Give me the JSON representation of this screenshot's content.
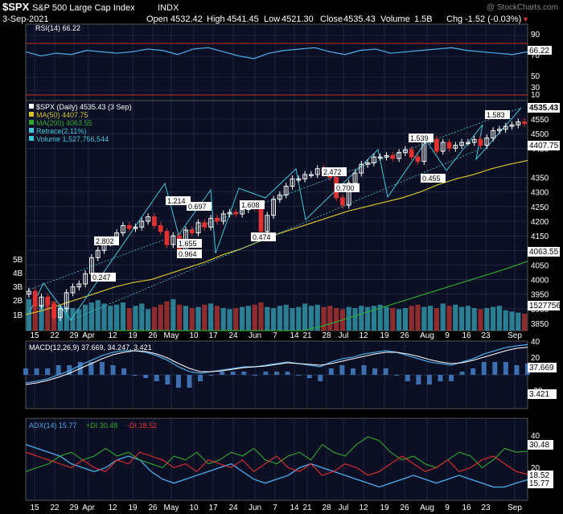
{
  "header": {
    "symbol": "$SPX",
    "name": "S&P 500 Large Cap Index",
    "exchange": "INDX",
    "watermark": "@ StockCharts.com",
    "date": "3-Sep-2021",
    "quote_labels": {
      "open": "Open",
      "high": "High",
      "low": "Low",
      "close": "Close",
      "volume": "Volume",
      "change": "Chg"
    },
    "quote_values": {
      "open": "4532.42",
      "high": "4541.45",
      "low": "4521.30",
      "close": "4535.43",
      "volume": "1.5B",
      "change": "-1.52 (-0.03%)"
    },
    "down_arrow": "▼"
  },
  "colors": {
    "background": "#000000",
    "panel": "#0a0f24",
    "grid": "#2a3550",
    "axis_text": "#ffffff",
    "rsi_line": "#4aa3df",
    "rsi_bands": "#c03030",
    "up_candle": "#ffffff",
    "down_candle": "#e03030",
    "ma50": "#d7c42a",
    "ma200": "#2fa82f",
    "retrace": "#3fc6d8",
    "volume_up": "#2f8b9e",
    "volume_down": "#9e2f2f",
    "macd_line": "#4aa3df",
    "signal_line": "#ffffff",
    "histogram": "#3b6fb0",
    "adx_line": "#4aa3df",
    "plus_di": "#2fa82f",
    "minus_di": "#e03030",
    "label_bg": "#ffffff",
    "label_text": "#000000"
  },
  "rsi_panel": {
    "legend": "RSI(14) 66.22",
    "value_label": "66.22",
    "y_ticks": [
      "90",
      "70",
      "50",
      "30",
      "10"
    ]
  },
  "price_panel": {
    "legend": [
      {
        "text": "$SPX (Daily) 4535.43 (3 Sep)",
        "color": "#ffffff"
      },
      {
        "text": "MA(50) 4407.75",
        "color": "#d7c42a"
      },
      {
        "text": "MA(200) 4063.55",
        "color": "#2fa82f"
      },
      {
        "text": "Retrace(2.11%)",
        "color": "#3fc6d8"
      },
      {
        "text": "Volume 1,527,756,544",
        "color": "#3fc6d8"
      }
    ],
    "y_ticks": [
      "4550",
      "4500",
      "4450",
      "4350",
      "4300",
      "4250",
      "4200",
      "4150",
      "4100",
      "4050",
      "4000",
      "3950",
      "3900",
      "3850"
    ],
    "volume_ticks": [
      "5B",
      "4B",
      "3B",
      "2B",
      "1B"
    ],
    "current_labels": [
      "4535.43",
      "4407.75",
      "4063.55",
      "1527756"
    ],
    "retrace_labels": [
      "0.247",
      "2.802",
      "1.214",
      "0.697",
      "1.655",
      "0.964",
      "1.608",
      "0.474",
      "2.472",
      "0.700",
      "1.539",
      "0.455",
      "1.583"
    ]
  },
  "x_axis": {
    "labels": [
      "15",
      "22",
      "29",
      "Apr",
      "12",
      "19",
      "26",
      "May",
      "10",
      "17",
      "24",
      "Jun",
      "7",
      "14",
      "21",
      "28",
      "Jul",
      "12",
      "19",
      "26",
      "Aug",
      "9",
      "16",
      "23",
      "Sep"
    ]
  },
  "macd_panel": {
    "legend": "MACD(12,26,9) 37.669, 34.247, 3.421",
    "value_labels": [
      "37.669",
      "3.421"
    ],
    "y_ticks": [
      "40",
      "20",
      "-20"
    ]
  },
  "adx_panel": {
    "legend": [
      {
        "text": "ADX(14) 15.77",
        "color": "#4aa3df"
      },
      {
        "text": "+DI 30.48",
        "color": "#2fa82f"
      },
      {
        "text": "-DI 18.52",
        "color": "#e03030"
      }
    ],
    "value_labels": [
      "30.48",
      "18.52",
      "15.77"
    ],
    "y_ticks": [
      "40",
      "20"
    ]
  },
  "chart_data": {
    "type": "candlestick",
    "title": "$SPX S&P 500 Large Cap Index INDX",
    "x_range": [
      "2021-03-15",
      "2021-09-03"
    ],
    "close_path": [
      3960,
      3910,
      3940,
      3915,
      3870,
      3900,
      3955,
      3975,
      3985,
      4020,
      4075,
      4100,
      4125,
      4130,
      4160,
      4185,
      4175,
      4180,
      4200,
      4215,
      4185,
      4165,
      4120,
      4150,
      4100,
      4170,
      4160,
      4195,
      4180,
      4210,
      4200,
      4225,
      4230,
      4225,
      4240,
      4250,
      4245,
      4165,
      4220,
      4275,
      4290,
      4320,
      4345,
      4345,
      4360,
      4360,
      4380,
      4370,
      4350,
      4280,
      4255,
      4330,
      4365,
      4395,
      4400,
      4420,
      4420,
      4425,
      4415,
      4435,
      4445,
      4420,
      4405,
      4475,
      4480,
      4440,
      4470,
      4450,
      4460,
      4470,
      4470,
      4480,
      4460,
      4485,
      4510,
      4515,
      4525,
      4530,
      4540,
      4535
    ],
    "ma50_path": [
      3880,
      3895,
      3915,
      3935,
      3955,
      3975,
      3990,
      4000,
      4020,
      4040,
      4060,
      4085,
      4105,
      4130,
      4155,
      4175,
      4195,
      4215,
      4235,
      4250,
      4265,
      4280,
      4300,
      4325,
      4345,
      4360,
      4380,
      4395,
      4408
    ],
    "ma200_path": [
      3640,
      3650,
      3665,
      3685,
      3700,
      3720,
      3740,
      3760,
      3780,
      3800,
      3820,
      3840,
      3860,
      3880,
      3900,
      3920,
      3940,
      3960,
      3980,
      4000,
      4020,
      4040,
      4063
    ],
    "rsi_path": [
      66,
      60,
      64,
      62,
      68,
      66,
      64,
      66,
      70,
      68,
      62,
      70,
      72,
      66,
      60,
      56,
      64,
      68,
      70,
      72,
      66,
      62,
      68,
      70,
      64,
      66,
      68,
      70,
      72,
      68,
      66,
      64,
      62,
      66
    ],
    "volume_path": [
      2.8,
      2.5,
      2.3,
      2.4,
      2.6,
      2.2,
      2.1,
      2.0,
      1.9,
      2.3,
      2.5,
      2.7,
      2.4,
      2.2,
      2.3,
      2.5,
      2.0,
      2.2,
      2.4,
      1.9,
      2.1,
      2.3,
      2.6,
      2.8,
      2.3,
      2.2,
      2.0,
      2.1,
      2.3,
      2.4,
      2.2,
      2.0,
      1.9,
      2.0,
      2.1,
      2.2,
      2.3,
      2.5,
      2.1,
      2.0,
      2.2,
      2.3,
      2.0,
      2.1,
      2.4,
      2.2,
      2.3,
      2.1,
      2.2,
      2.0,
      1.9,
      2.1,
      2.0,
      2.2,
      2.1,
      2.2,
      2.3,
      2.1,
      2.0,
      1.9,
      2.0,
      2.2,
      2.3,
      2.1,
      2.2,
      2.0,
      2.4,
      2.2,
      2.3,
      2.1,
      2.2,
      2.0,
      1.9,
      2.0,
      2.1,
      2.2,
      1.8,
      1.7,
      1.6,
      1.5
    ],
    "macd_path": [
      -10,
      -8,
      -5,
      0,
      5,
      12,
      18,
      24,
      28,
      30,
      30,
      28,
      24,
      18,
      10,
      4,
      2,
      4,
      6,
      8,
      10,
      10,
      12,
      14,
      16,
      14,
      12,
      10,
      16,
      20,
      22,
      26,
      28,
      30,
      28,
      24,
      20,
      16,
      14,
      12,
      16,
      20,
      26,
      30,
      34,
      36,
      37.7
    ],
    "signal_path": [
      -12,
      -10,
      -7,
      -3,
      2,
      8,
      14,
      20,
      25,
      28,
      30,
      29,
      26,
      21,
      14,
      8,
      4,
      4,
      5,
      7,
      9,
      10,
      11,
      13,
      15,
      14,
      13,
      12,
      14,
      17,
      20,
      23,
      26,
      28,
      28,
      26,
      23,
      19,
      16,
      14,
      15,
      18,
      22,
      26,
      30,
      33,
      34.2
    ],
    "adx_path": [
      34,
      32,
      30,
      28,
      24,
      22,
      20,
      22,
      26,
      28,
      26,
      20,
      16,
      14,
      16,
      18,
      20,
      22,
      24,
      20,
      16,
      14,
      16,
      18,
      22,
      24,
      22,
      20,
      18,
      16,
      14,
      12,
      14,
      16,
      18,
      16,
      14,
      16,
      18,
      16,
      14,
      12,
      12,
      14,
      15.8
    ],
    "plus_di_path": [
      20,
      22,
      24,
      28,
      30,
      26,
      28,
      32,
      28,
      30,
      26,
      24,
      22,
      28,
      26,
      30,
      24,
      26,
      30,
      28,
      32,
      26,
      24,
      28,
      30,
      26,
      34,
      30,
      28,
      34,
      38,
      36,
      30,
      26,
      28,
      24,
      22,
      26,
      30,
      28,
      22,
      26,
      32,
      30,
      30.5
    ],
    "minus_di_path": [
      30,
      28,
      26,
      24,
      22,
      26,
      22,
      20,
      26,
      24,
      30,
      28,
      26,
      22,
      24,
      20,
      26,
      24,
      22,
      26,
      20,
      24,
      28,
      22,
      20,
      24,
      18,
      20,
      24,
      22,
      18,
      20,
      24,
      28,
      24,
      20,
      22,
      26,
      20,
      22,
      26,
      28,
      24,
      20,
      18.5
    ]
  }
}
